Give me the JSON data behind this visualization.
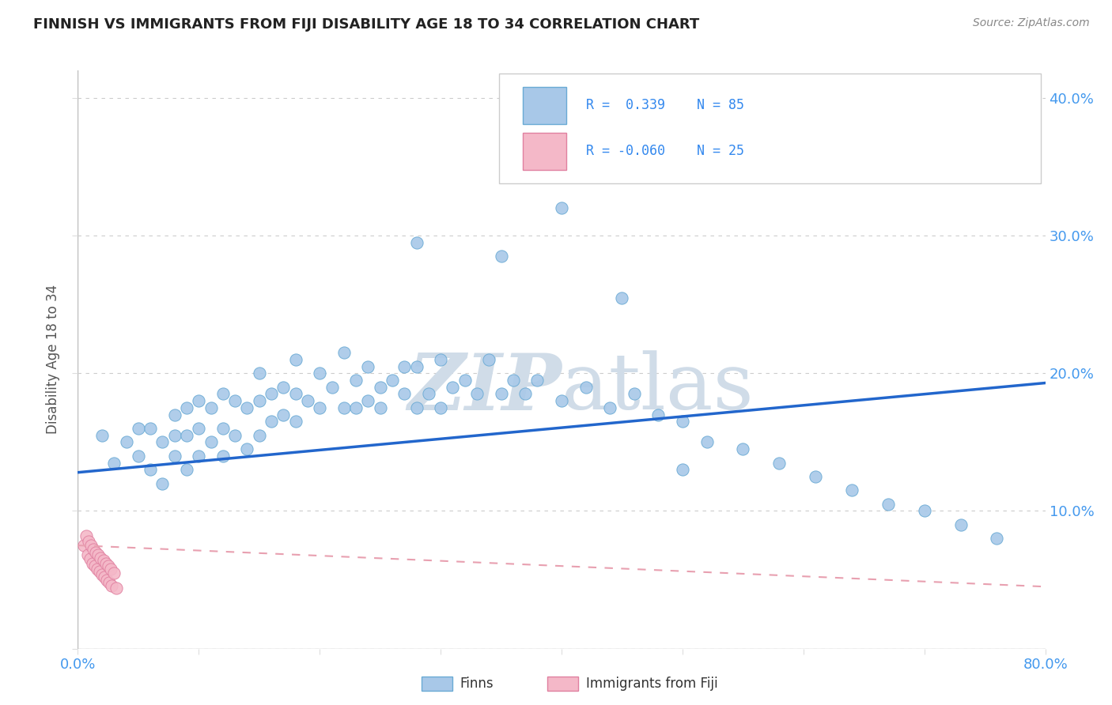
{
  "title": "FINNISH VS IMMIGRANTS FROM FIJI DISABILITY AGE 18 TO 34 CORRELATION CHART",
  "source": "Source: ZipAtlas.com",
  "ylabel": "Disability Age 18 to 34",
  "xlim": [
    0.0,
    0.8
  ],
  "ylim": [
    0.0,
    0.42
  ],
  "xticks": [
    0.0,
    0.1,
    0.2,
    0.3,
    0.4,
    0.5,
    0.6,
    0.7,
    0.8
  ],
  "yticks": [
    0.0,
    0.1,
    0.2,
    0.3,
    0.4
  ],
  "blue_color": "#a8c8e8",
  "blue_edge": "#6aaad4",
  "pink_color": "#f4b8c8",
  "pink_edge": "#e080a0",
  "trendline_blue": "#2266cc",
  "trendline_pink": "#e8a0b0",
  "watermark_color": "#d0dce8",
  "blue_trend_x0": 0.0,
  "blue_trend_y0": 0.128,
  "blue_trend_x1": 0.8,
  "blue_trend_y1": 0.193,
  "pink_trend_x0": 0.0,
  "pink_trend_y0": 0.075,
  "pink_trend_x1": 0.8,
  "pink_trend_y1": 0.045,
  "blue_scatter_x": [
    0.02,
    0.03,
    0.04,
    0.05,
    0.05,
    0.06,
    0.06,
    0.07,
    0.07,
    0.08,
    0.08,
    0.08,
    0.09,
    0.09,
    0.09,
    0.1,
    0.1,
    0.1,
    0.11,
    0.11,
    0.12,
    0.12,
    0.12,
    0.13,
    0.13,
    0.14,
    0.14,
    0.15,
    0.15,
    0.15,
    0.16,
    0.16,
    0.17,
    0.17,
    0.18,
    0.18,
    0.18,
    0.19,
    0.2,
    0.2,
    0.21,
    0.22,
    0.22,
    0.23,
    0.23,
    0.24,
    0.24,
    0.25,
    0.25,
    0.26,
    0.27,
    0.27,
    0.28,
    0.28,
    0.29,
    0.3,
    0.3,
    0.31,
    0.32,
    0.33,
    0.34,
    0.35,
    0.36,
    0.37,
    0.38,
    0.4,
    0.42,
    0.44,
    0.46,
    0.48,
    0.5,
    0.52,
    0.55,
    0.58,
    0.61,
    0.64,
    0.67,
    0.7,
    0.73,
    0.76,
    0.28,
    0.35,
    0.4,
    0.45,
    0.5
  ],
  "blue_scatter_y": [
    0.155,
    0.135,
    0.15,
    0.14,
    0.16,
    0.13,
    0.16,
    0.12,
    0.15,
    0.14,
    0.155,
    0.17,
    0.13,
    0.155,
    0.175,
    0.14,
    0.16,
    0.18,
    0.15,
    0.175,
    0.14,
    0.16,
    0.185,
    0.155,
    0.18,
    0.145,
    0.175,
    0.155,
    0.18,
    0.2,
    0.165,
    0.185,
    0.17,
    0.19,
    0.165,
    0.185,
    0.21,
    0.18,
    0.175,
    0.2,
    0.19,
    0.175,
    0.215,
    0.175,
    0.195,
    0.18,
    0.205,
    0.19,
    0.175,
    0.195,
    0.185,
    0.205,
    0.175,
    0.205,
    0.185,
    0.175,
    0.21,
    0.19,
    0.195,
    0.185,
    0.21,
    0.185,
    0.195,
    0.185,
    0.195,
    0.18,
    0.19,
    0.175,
    0.185,
    0.17,
    0.165,
    0.15,
    0.145,
    0.135,
    0.125,
    0.115,
    0.105,
    0.1,
    0.09,
    0.08,
    0.295,
    0.285,
    0.32,
    0.255,
    0.13
  ],
  "pink_scatter_x": [
    0.005,
    0.007,
    0.008,
    0.009,
    0.01,
    0.011,
    0.012,
    0.013,
    0.014,
    0.015,
    0.016,
    0.017,
    0.018,
    0.019,
    0.02,
    0.021,
    0.022,
    0.023,
    0.024,
    0.025,
    0.026,
    0.027,
    0.028,
    0.03,
    0.032
  ],
  "pink_scatter_y": [
    0.075,
    0.082,
    0.068,
    0.078,
    0.065,
    0.075,
    0.062,
    0.072,
    0.06,
    0.07,
    0.058,
    0.068,
    0.056,
    0.066,
    0.054,
    0.064,
    0.052,
    0.062,
    0.05,
    0.06,
    0.048,
    0.058,
    0.046,
    0.055,
    0.044
  ]
}
